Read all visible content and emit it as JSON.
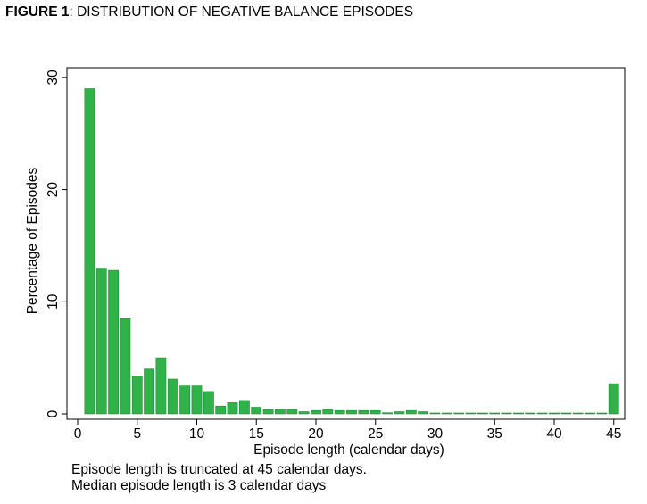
{
  "figure": {
    "label": "FIGURE 1",
    "title": ": DISTRIBUTION OF NEGATIVE BALANCE EPISODES"
  },
  "notes": [
    "Episode length is truncated at 45 calendar days.",
    "Median episode length is 3 calendar days"
  ],
  "colors": {
    "bar": "#2fb349",
    "bar_edge": "#1f8f35",
    "axis": "#000000"
  },
  "chart_data": {
    "type": "bar",
    "title": "",
    "xlabel": "Episode length (calendar days)",
    "ylabel": "Percentage of Episodes",
    "xlim": [
      0,
      46
    ],
    "ylim": [
      0,
      30
    ],
    "xticks": [
      0,
      5,
      10,
      15,
      20,
      25,
      30,
      35,
      40,
      45
    ],
    "yticks": [
      0,
      10,
      20,
      30
    ],
    "x": [
      1,
      2,
      3,
      4,
      5,
      6,
      7,
      8,
      9,
      10,
      11,
      12,
      13,
      14,
      15,
      16,
      17,
      18,
      19,
      20,
      21,
      22,
      23,
      24,
      25,
      26,
      27,
      28,
      29,
      30,
      31,
      32,
      33,
      34,
      35,
      36,
      37,
      38,
      39,
      40,
      41,
      42,
      43,
      44,
      45
    ],
    "values": [
      29.0,
      13.0,
      12.8,
      8.5,
      3.4,
      4.0,
      5.0,
      3.1,
      2.5,
      2.5,
      2.0,
      0.7,
      1.0,
      1.2,
      0.6,
      0.4,
      0.4,
      0.4,
      0.2,
      0.3,
      0.4,
      0.3,
      0.3,
      0.3,
      0.3,
      0.1,
      0.2,
      0.3,
      0.2,
      0.05,
      0.05,
      0.05,
      0.05,
      0.05,
      0.05,
      0.05,
      0.05,
      0.05,
      0.05,
      0.05,
      0.05,
      0.05,
      0.05,
      0.05,
      2.7
    ],
    "grid": false,
    "legend": "none"
  }
}
